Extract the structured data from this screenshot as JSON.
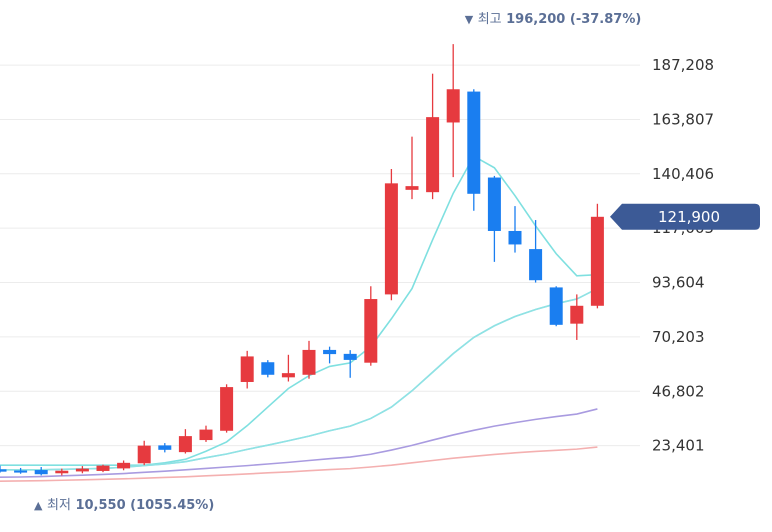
{
  "chart_data": {
    "type": "candlestick",
    "ylim": [
      0,
      198000
    ],
    "y_ticks": [
      23401,
      46802,
      70203,
      93604,
      117005,
      140406,
      163807,
      187208
    ],
    "y_tick_labels": [
      "23,401",
      "46,802",
      "70,203",
      "93,604",
      "117,005",
      "140,406",
      "163,807",
      "187,208"
    ],
    "current_price": 121900,
    "current_price_label": "121,900",
    "high_annotation": {
      "marker": "▼",
      "label": "최고",
      "value_text": "196,200 (-37.87%)",
      "value": 196200
    },
    "low_annotation": {
      "marker": "▲",
      "label": "최저",
      "value_text": "10,550 (1055.45%)",
      "value": 10550
    },
    "candles": [
      {
        "o": 13200,
        "h": 14800,
        "l": 11800,
        "c": 12200
      },
      {
        "o": 12700,
        "h": 13800,
        "l": 11300,
        "c": 11800
      },
      {
        "o": 12900,
        "h": 14200,
        "l": 10600,
        "c": 11100
      },
      {
        "o": 11500,
        "h": 13500,
        "l": 10550,
        "c": 12600
      },
      {
        "o": 12300,
        "h": 14600,
        "l": 11500,
        "c": 13500
      },
      {
        "o": 12500,
        "h": 15200,
        "l": 12000,
        "c": 14800
      },
      {
        "o": 13600,
        "h": 17000,
        "l": 12800,
        "c": 16000
      },
      {
        "o": 15800,
        "h": 25500,
        "l": 15000,
        "c": 23400
      },
      {
        "o": 23500,
        "h": 24500,
        "l": 20500,
        "c": 21600
      },
      {
        "o": 20600,
        "h": 30500,
        "l": 20000,
        "c": 27500
      },
      {
        "o": 25800,
        "h": 32000,
        "l": 25000,
        "c": 30300
      },
      {
        "o": 29800,
        "h": 49800,
        "l": 29000,
        "c": 48600
      },
      {
        "o": 50800,
        "h": 64200,
        "l": 48000,
        "c": 61800
      },
      {
        "o": 59300,
        "h": 60200,
        "l": 52800,
        "c": 53900
      },
      {
        "o": 52800,
        "h": 62500,
        "l": 51000,
        "c": 54600
      },
      {
        "o": 53900,
        "h": 68500,
        "l": 52200,
        "c": 64600
      },
      {
        "o": 64600,
        "h": 66000,
        "l": 58800,
        "c": 62800
      },
      {
        "o": 62900,
        "h": 64500,
        "l": 52600,
        "c": 60300
      },
      {
        "o": 59100,
        "h": 92000,
        "l": 57800,
        "c": 86500
      },
      {
        "o": 88500,
        "h": 142500,
        "l": 86000,
        "c": 136300
      },
      {
        "o": 133500,
        "h": 156400,
        "l": 129500,
        "c": 135100
      },
      {
        "o": 132500,
        "h": 183500,
        "l": 129500,
        "c": 164800
      },
      {
        "o": 162500,
        "h": 196200,
        "l": 139000,
        "c": 176800
      },
      {
        "o": 175800,
        "h": 176800,
        "l": 124500,
        "c": 131800
      },
      {
        "o": 138800,
        "h": 139500,
        "l": 102500,
        "c": 115800
      },
      {
        "o": 115800,
        "h": 126500,
        "l": 106500,
        "c": 110000
      },
      {
        "o": 108000,
        "h": 120500,
        "l": 93600,
        "c": 94600
      },
      {
        "o": 91500,
        "h": 92000,
        "l": 74800,
        "c": 75400
      },
      {
        "o": 75900,
        "h": 88500,
        "l": 68900,
        "c": 83600
      },
      {
        "o": 83600,
        "h": 127500,
        "l": 82500,
        "c": 121900
      }
    ],
    "moving_averages": [
      {
        "color": "#7fe0e0",
        "values": [
          15000,
          15000,
          15000,
          15000,
          15000,
          15000,
          15000,
          15000,
          16000,
          17500,
          21000,
          25000,
          32000,
          40000,
          48000,
          53500,
          57500,
          59000,
          66000,
          78000,
          91000,
          112000,
          132000,
          148000,
          143000,
          131000,
          118000,
          106000,
          96500,
          97000
        ]
      },
      {
        "color": "#a8d4f2",
        "values": [
          13000,
          13000,
          13000,
          13200,
          13400,
          13600,
          14100,
          14800,
          15500,
          16500,
          18200,
          19800,
          21800,
          23600,
          25500,
          27500,
          29800,
          31800,
          35100,
          40000,
          47000,
          55000,
          63000,
          70000,
          75000,
          79000,
          82000,
          84500,
          86500,
          91000
        ]
      },
      {
        "color": "#8fe3e3",
        "values": [
          13000,
          13000,
          13000,
          13200,
          13400,
          13600,
          14100,
          14800,
          15500,
          16500,
          18200,
          19800,
          21800,
          23600,
          25500,
          27500,
          29800,
          31800,
          35100,
          40000,
          47000,
          55000,
          63000,
          70000,
          75000,
          79000,
          82000,
          84500,
          86500,
          91000
        ]
      },
      {
        "color": "#a99be0",
        "values": [
          9800,
          9900,
          10100,
          10400,
          10700,
          11000,
          11400,
          11900,
          12400,
          13000,
          13600,
          14200,
          14800,
          15500,
          16200,
          17000,
          17800,
          18500,
          19700,
          21500,
          23500,
          25800,
          28000,
          30000,
          31800,
          33300,
          34700,
          35900,
          37000,
          39200
        ]
      },
      {
        "color": "#f4b0b0",
        "values": [
          8100,
          8200,
          8300,
          8500,
          8700,
          8900,
          9100,
          9400,
          9700,
          10000,
          10400,
          10800,
          11200,
          11700,
          12100,
          12600,
          13100,
          13500,
          14200,
          15000,
          16000,
          17000,
          18000,
          18800,
          19600,
          20300,
          20900,
          21400,
          21900,
          22800
        ]
      }
    ],
    "colors": {
      "up": "#e63a3f",
      "down": "#1a7ef0",
      "grid": "#ececec",
      "price_tag": "#3c5a96",
      "annotation": "#5b6f96"
    }
  }
}
